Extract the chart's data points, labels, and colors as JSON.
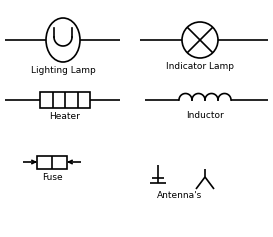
{
  "bg_color": "#ffffff",
  "line_color": "#000000",
  "lw": 1.2,
  "labels": {
    "lighting_lamp": "Lighting Lamp",
    "indicator_lamp": "Indicator Lamp",
    "heater": "Heater",
    "inductor": "Inductor",
    "fuse": "Fuse",
    "antennas": "Antenna's"
  },
  "label_fontsize": 6.5,
  "figsize": [
    2.73,
    2.37
  ],
  "dpi": 100
}
